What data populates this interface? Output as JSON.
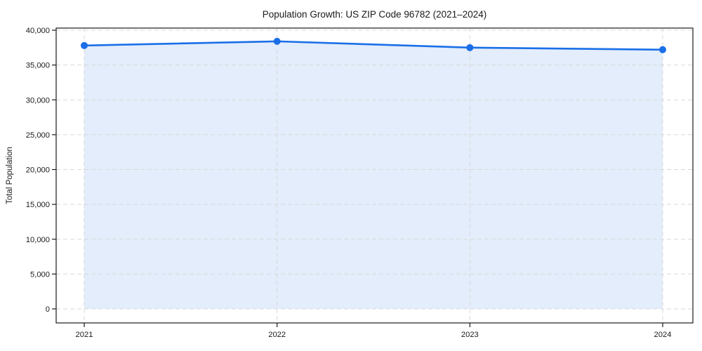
{
  "chart_data": {
    "type": "area",
    "title": "Population Growth: US ZIP Code 96782 (2021–2024)",
    "xlabel": "",
    "ylabel": "Total Population",
    "x": [
      "2021",
      "2022",
      "2023",
      "2024"
    ],
    "series": [
      {
        "name": "Total Population",
        "values": [
          37800,
          38400,
          37500,
          37200
        ]
      }
    ],
    "ylim": [
      0,
      40000
    ],
    "ytick_step": 5000,
    "ytick_labels": [
      "0",
      "5,000",
      "10,000",
      "15,000",
      "20,000",
      "25,000",
      "30,000",
      "35,000",
      "40,000"
    ],
    "grid": {
      "visible": true,
      "style": "dashed",
      "horizontal": true,
      "vertical": true
    },
    "legend": false,
    "marker": "circle",
    "colors": {
      "line": "#1a6fe8",
      "marker": "#1a6fe8",
      "fill": "#e3edfb",
      "grid": "#d9d9d9",
      "spine": "#1a1a1a",
      "text": "#1a1a1a",
      "background": "#ffffff"
    }
  }
}
